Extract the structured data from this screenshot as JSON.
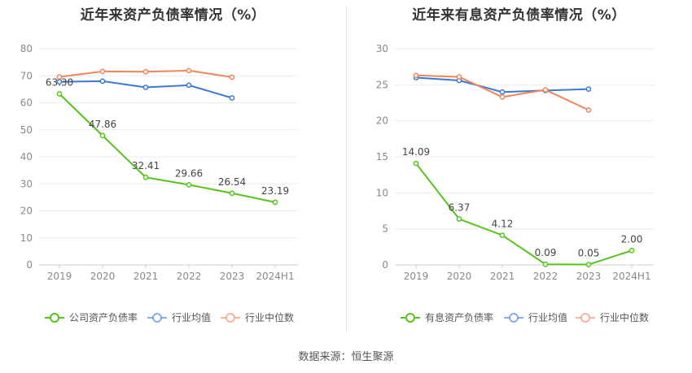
{
  "chart_data": [
    {
      "type": "line",
      "title": "近年来资产负债率情况（%）",
      "categories": [
        "2019",
        "2020",
        "2021",
        "2022",
        "2023",
        "2024H1"
      ],
      "ylim": [
        0,
        80
      ],
      "yticks": [
        0,
        10,
        20,
        30,
        40,
        50,
        60,
        70,
        80
      ],
      "grid": true,
      "legend_position": "bottom",
      "series": [
        {
          "name": "公司资产负债率",
          "color": "#52c41a",
          "values": [
            63.3,
            47.86,
            32.41,
            29.66,
            26.54,
            23.19
          ],
          "labels": [
            "63.30",
            "47.86",
            "32.41",
            "29.66",
            "26.54",
            "23.19"
          ]
        },
        {
          "name": "行业均值",
          "color": "#3a78d6",
          "values": [
            67.8,
            68.0,
            65.7,
            66.5,
            61.8,
            null
          ]
        },
        {
          "name": "行业中位数",
          "color": "#f0855a",
          "values": [
            69.6,
            71.6,
            71.5,
            71.9,
            69.5,
            null
          ]
        }
      ]
    },
    {
      "type": "line",
      "title": "近年来有息资产负债率情况（%）",
      "categories": [
        "2019",
        "2020",
        "2021",
        "2022",
        "2023",
        "2024H1"
      ],
      "ylim": [
        0,
        30
      ],
      "yticks": [
        0,
        5,
        10,
        15,
        20,
        25,
        30
      ],
      "grid": true,
      "legend_position": "bottom",
      "series": [
        {
          "name": "有息资产负债率",
          "color": "#52c41a",
          "values": [
            14.09,
            6.37,
            4.12,
            0.09,
            0.05,
            2.0
          ],
          "labels": [
            "14.09",
            "6.37",
            "4.12",
            "0.09",
            "0.05",
            "2.00"
          ]
        },
        {
          "name": "行业均值",
          "color": "#3a78d6",
          "values": [
            26.0,
            25.6,
            24.0,
            24.2,
            24.4,
            null
          ]
        },
        {
          "name": "行业中位数",
          "color": "#f0855a",
          "values": [
            26.3,
            26.1,
            23.3,
            24.3,
            21.5,
            null
          ]
        }
      ]
    }
  ],
  "footer": {
    "source": "数据来源：恒生聚源"
  }
}
